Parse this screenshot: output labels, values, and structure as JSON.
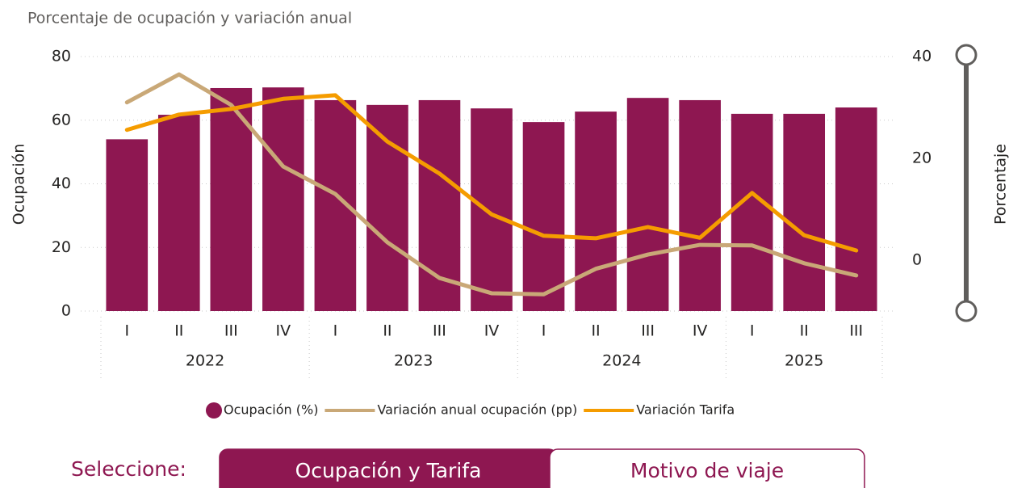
{
  "chart_data": {
    "type": "bar_line",
    "title": "Porcentaje de ocupación y variación anual",
    "y_label": "Ocupación",
    "y2_label": "Porcentaje",
    "categories": [
      "I",
      "II",
      "III",
      "IV",
      "I",
      "II",
      "III",
      "IV",
      "I",
      "II",
      "III",
      "IV",
      "I",
      "II",
      "III"
    ],
    "groups": [
      {
        "label": "2022",
        "span": 4
      },
      {
        "label": "2023",
        "span": 4
      },
      {
        "label": "2024",
        "span": 4
      },
      {
        "label": "2025",
        "span": 3
      }
    ],
    "series": [
      {
        "name": "Ocupación (%)",
        "type": "bar",
        "color": "#8e1751",
        "values": [
          54,
          61.7,
          70.1,
          70.3,
          66.3,
          64.8,
          66.3,
          63.7,
          59.4,
          62.7,
          67,
          66.3,
          62,
          62,
          64
        ]
      },
      {
        "name": "Variación anual ocupación (pp)",
        "type": "line",
        "axis": "y2",
        "color": "#c9a877",
        "values": [
          31,
          36.5,
          30.5,
          18.4,
          13,
          3.5,
          -3.5,
          -6.5,
          -6.7,
          -1.7,
          1.1,
          3,
          2.9,
          -0.6,
          -3
        ]
      },
      {
        "name": "Variación Tarifa",
        "type": "line",
        "axis": "y2",
        "color": "#f59c00",
        "values": [
          25.6,
          28.6,
          29.7,
          31.7,
          32.4,
          23.3,
          17,
          9,
          4.8,
          4.3,
          6.5,
          4.4,
          13.2,
          4.9,
          1.9
        ]
      }
    ],
    "ylim": [
      0,
      80
    ],
    "yticks": [
      0,
      20,
      40,
      60,
      80
    ],
    "y2lim": [
      -10,
      40
    ],
    "y2ticks": [
      0,
      20,
      40
    ],
    "grid": true,
    "legend": "bottom"
  },
  "selector": {
    "label": "Seleccione:",
    "buttons": [
      "Ocupación y Tarifa",
      "Motivo de viaje"
    ],
    "active": 0
  }
}
